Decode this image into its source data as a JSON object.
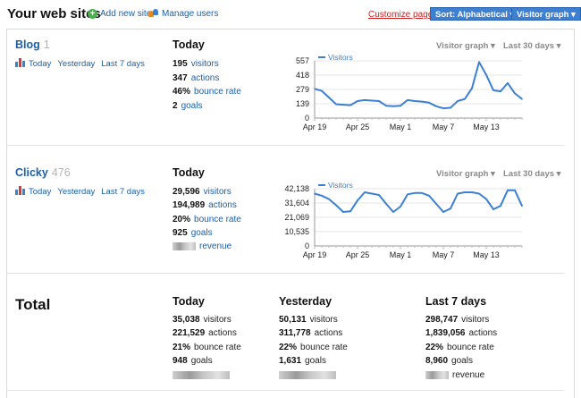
{
  "header": {
    "title": "Your web sites",
    "add_site": "Add new site",
    "manage_users": "Manage users",
    "customize": "Customize page",
    "sort_button": "Sort: Alphabetical",
    "graph_button": "Visitor graph"
  },
  "sites": [
    {
      "name": "Blog",
      "count": "1",
      "links": [
        "Today",
        "Yesterday",
        "Last 7 days"
      ],
      "col_title": "Today",
      "graph_selector": "Visitor graph",
      "range_selector": "Last 30 days",
      "stats": [
        {
          "value": "195",
          "label": "visitors"
        },
        {
          "value": "347",
          "label": "actions"
        },
        {
          "value": "46%",
          "label": "bounce rate"
        },
        {
          "value": "2",
          "label": "goals"
        }
      ],
      "chart": {
        "legend": "Visitors",
        "yticks": [
          "557",
          "418",
          "279",
          "139",
          "0"
        ],
        "xticks": [
          "Apr 19",
          "Apr 25",
          "May 1",
          "May 7",
          "May 13"
        ]
      }
    },
    {
      "name": "Clicky",
      "count": "476",
      "links": [
        "Today",
        "Yesterday",
        "Last 7 days"
      ],
      "col_title": "Today",
      "graph_selector": "Visitor graph",
      "range_selector": "Last 30 days",
      "stats": [
        {
          "value": "29,596",
          "label": "visitors"
        },
        {
          "value": "194,989",
          "label": "actions"
        },
        {
          "value": "20%",
          "label": "bounce rate"
        },
        {
          "value": "925",
          "label": "goals"
        },
        {
          "value": "",
          "label": "revenue"
        }
      ],
      "chart": {
        "legend": "Visitors",
        "yticks": [
          "42,138",
          "31,604",
          "21,069",
          "10,535",
          "0"
        ],
        "xticks": [
          "Apr 19",
          "Apr 25",
          "May 1",
          "May 7",
          "May 13"
        ]
      }
    }
  ],
  "total": {
    "title": "Total",
    "columns": [
      {
        "title": "Today",
        "stats": [
          {
            "value": "35,038",
            "label": "visitors"
          },
          {
            "value": "221,529",
            "label": "actions"
          },
          {
            "value": "21%",
            "label": "bounce rate"
          },
          {
            "value": "948",
            "label": "goals"
          }
        ]
      },
      {
        "title": "Yesterday",
        "stats": [
          {
            "value": "50,131",
            "label": "visitors"
          },
          {
            "value": "311,778",
            "label": "actions"
          },
          {
            "value": "22%",
            "label": "bounce rate"
          },
          {
            "value": "1,631",
            "label": "goals"
          }
        ]
      },
      {
        "title": "Last 7 days",
        "stats": [
          {
            "value": "298,747",
            "label": "visitors"
          },
          {
            "value": "1,839,056",
            "label": "actions"
          },
          {
            "value": "22%",
            "label": "bounce rate"
          },
          {
            "value": "8,960",
            "label": "goals"
          },
          {
            "value": "",
            "label": "revenue"
          }
        ]
      }
    ]
  },
  "chart_data": [
    {
      "type": "line",
      "series": [
        {
          "name": "Visitors",
          "values": [
            285,
            265,
            200,
            135,
            130,
            125,
            165,
            175,
            170,
            165,
            120,
            115,
            120,
            175,
            165,
            160,
            150,
            115,
            95,
            100,
            165,
            185,
            290,
            545,
            420,
            270,
            260,
            340,
            240,
            185
          ]
        }
      ],
      "ylim": [
        0,
        557
      ],
      "yticks": [
        0,
        139,
        279,
        418,
        557
      ],
      "xticks": [
        "Apr 19",
        "Apr 25",
        "May 1",
        "May 7",
        "May 13"
      ],
      "colors": {
        "line": "#3d7fd1"
      }
    },
    {
      "type": "line",
      "series": [
        {
          "name": "Visitors",
          "values": [
            38500,
            37000,
            34500,
            30000,
            25000,
            25500,
            33500,
            39500,
            38500,
            37500,
            31000,
            25000,
            29000,
            38000,
            39000,
            39000,
            37000,
            31000,
            25000,
            27500,
            38500,
            39500,
            39500,
            38500,
            34500,
            27000,
            29500,
            41000,
            41000,
            29500
          ]
        }
      ],
      "ylim": [
        0,
        42138
      ],
      "yticks": [
        0,
        10535,
        21069,
        31604,
        42138
      ],
      "xticks": [
        "Apr 19",
        "Apr 25",
        "May 1",
        "May 7",
        "May 13"
      ],
      "colors": {
        "line": "#3d7fd1"
      }
    }
  ]
}
